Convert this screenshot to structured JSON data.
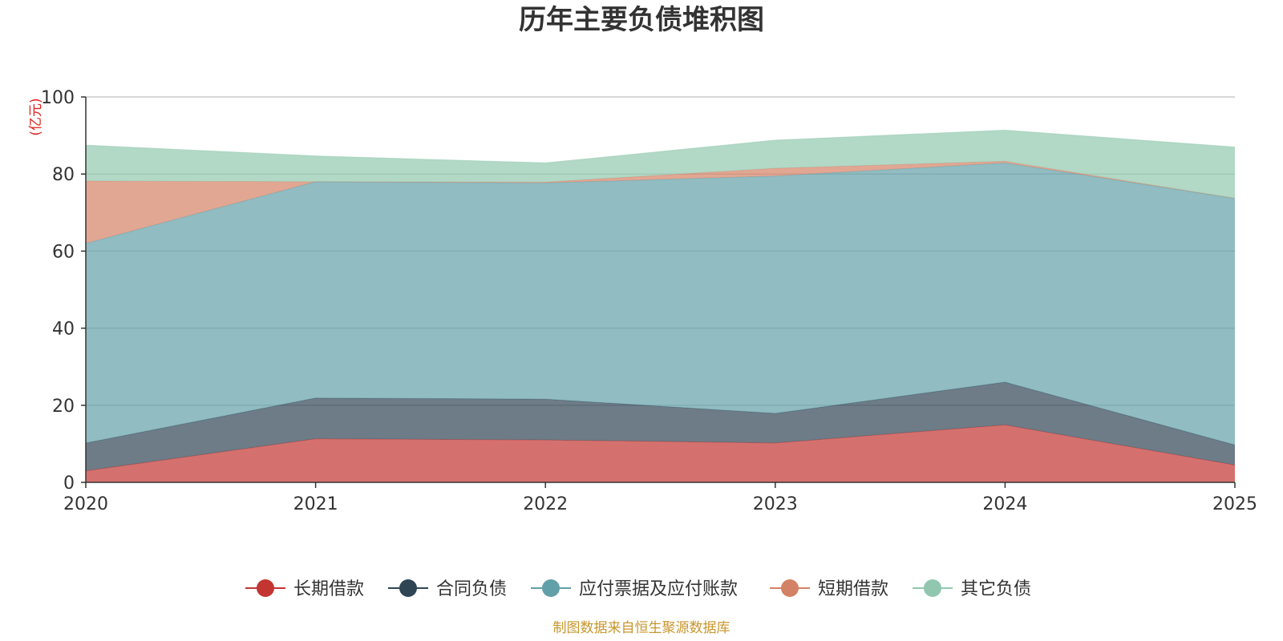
{
  "chart_data": {
    "type": "area",
    "stacked": true,
    "title": "历年主要负债堆积图",
    "unit_label": "(亿元)",
    "x": [
      "2020",
      "2021",
      "2022",
      "2023",
      "2024",
      "2025"
    ],
    "ylim": [
      0,
      100
    ],
    "yticks": [
      "0",
      "20",
      "40",
      "60",
      "80",
      "100"
    ],
    "grid": true,
    "legend_position": "bottom",
    "series": [
      {
        "name": "长期借款",
        "color": "#c23531",
        "values": [
          3.0,
          11.3,
          11.0,
          10.2,
          14.9,
          4.5
        ]
      },
      {
        "name": "合同负债",
        "color": "#2f4554",
        "values": [
          7.2,
          10.6,
          10.6,
          7.7,
          11.1,
          5.2
        ]
      },
      {
        "name": "应付票据及应付账款",
        "color": "#61a0a8",
        "values": [
          51.8,
          56.1,
          56.1,
          61.6,
          56.9,
          64.0
        ]
      },
      {
        "name": "短期借款",
        "color": "#d48265",
        "values": [
          16.2,
          0.0,
          0.2,
          2.0,
          0.4,
          0.0
        ]
      },
      {
        "name": "其它负债",
        "color": "#91c7ae",
        "values": [
          9.3,
          6.7,
          5.0,
          7.3,
          8.1,
          13.3
        ]
      }
    ],
    "source_note": "制图数据来自恒生聚源数据库"
  }
}
